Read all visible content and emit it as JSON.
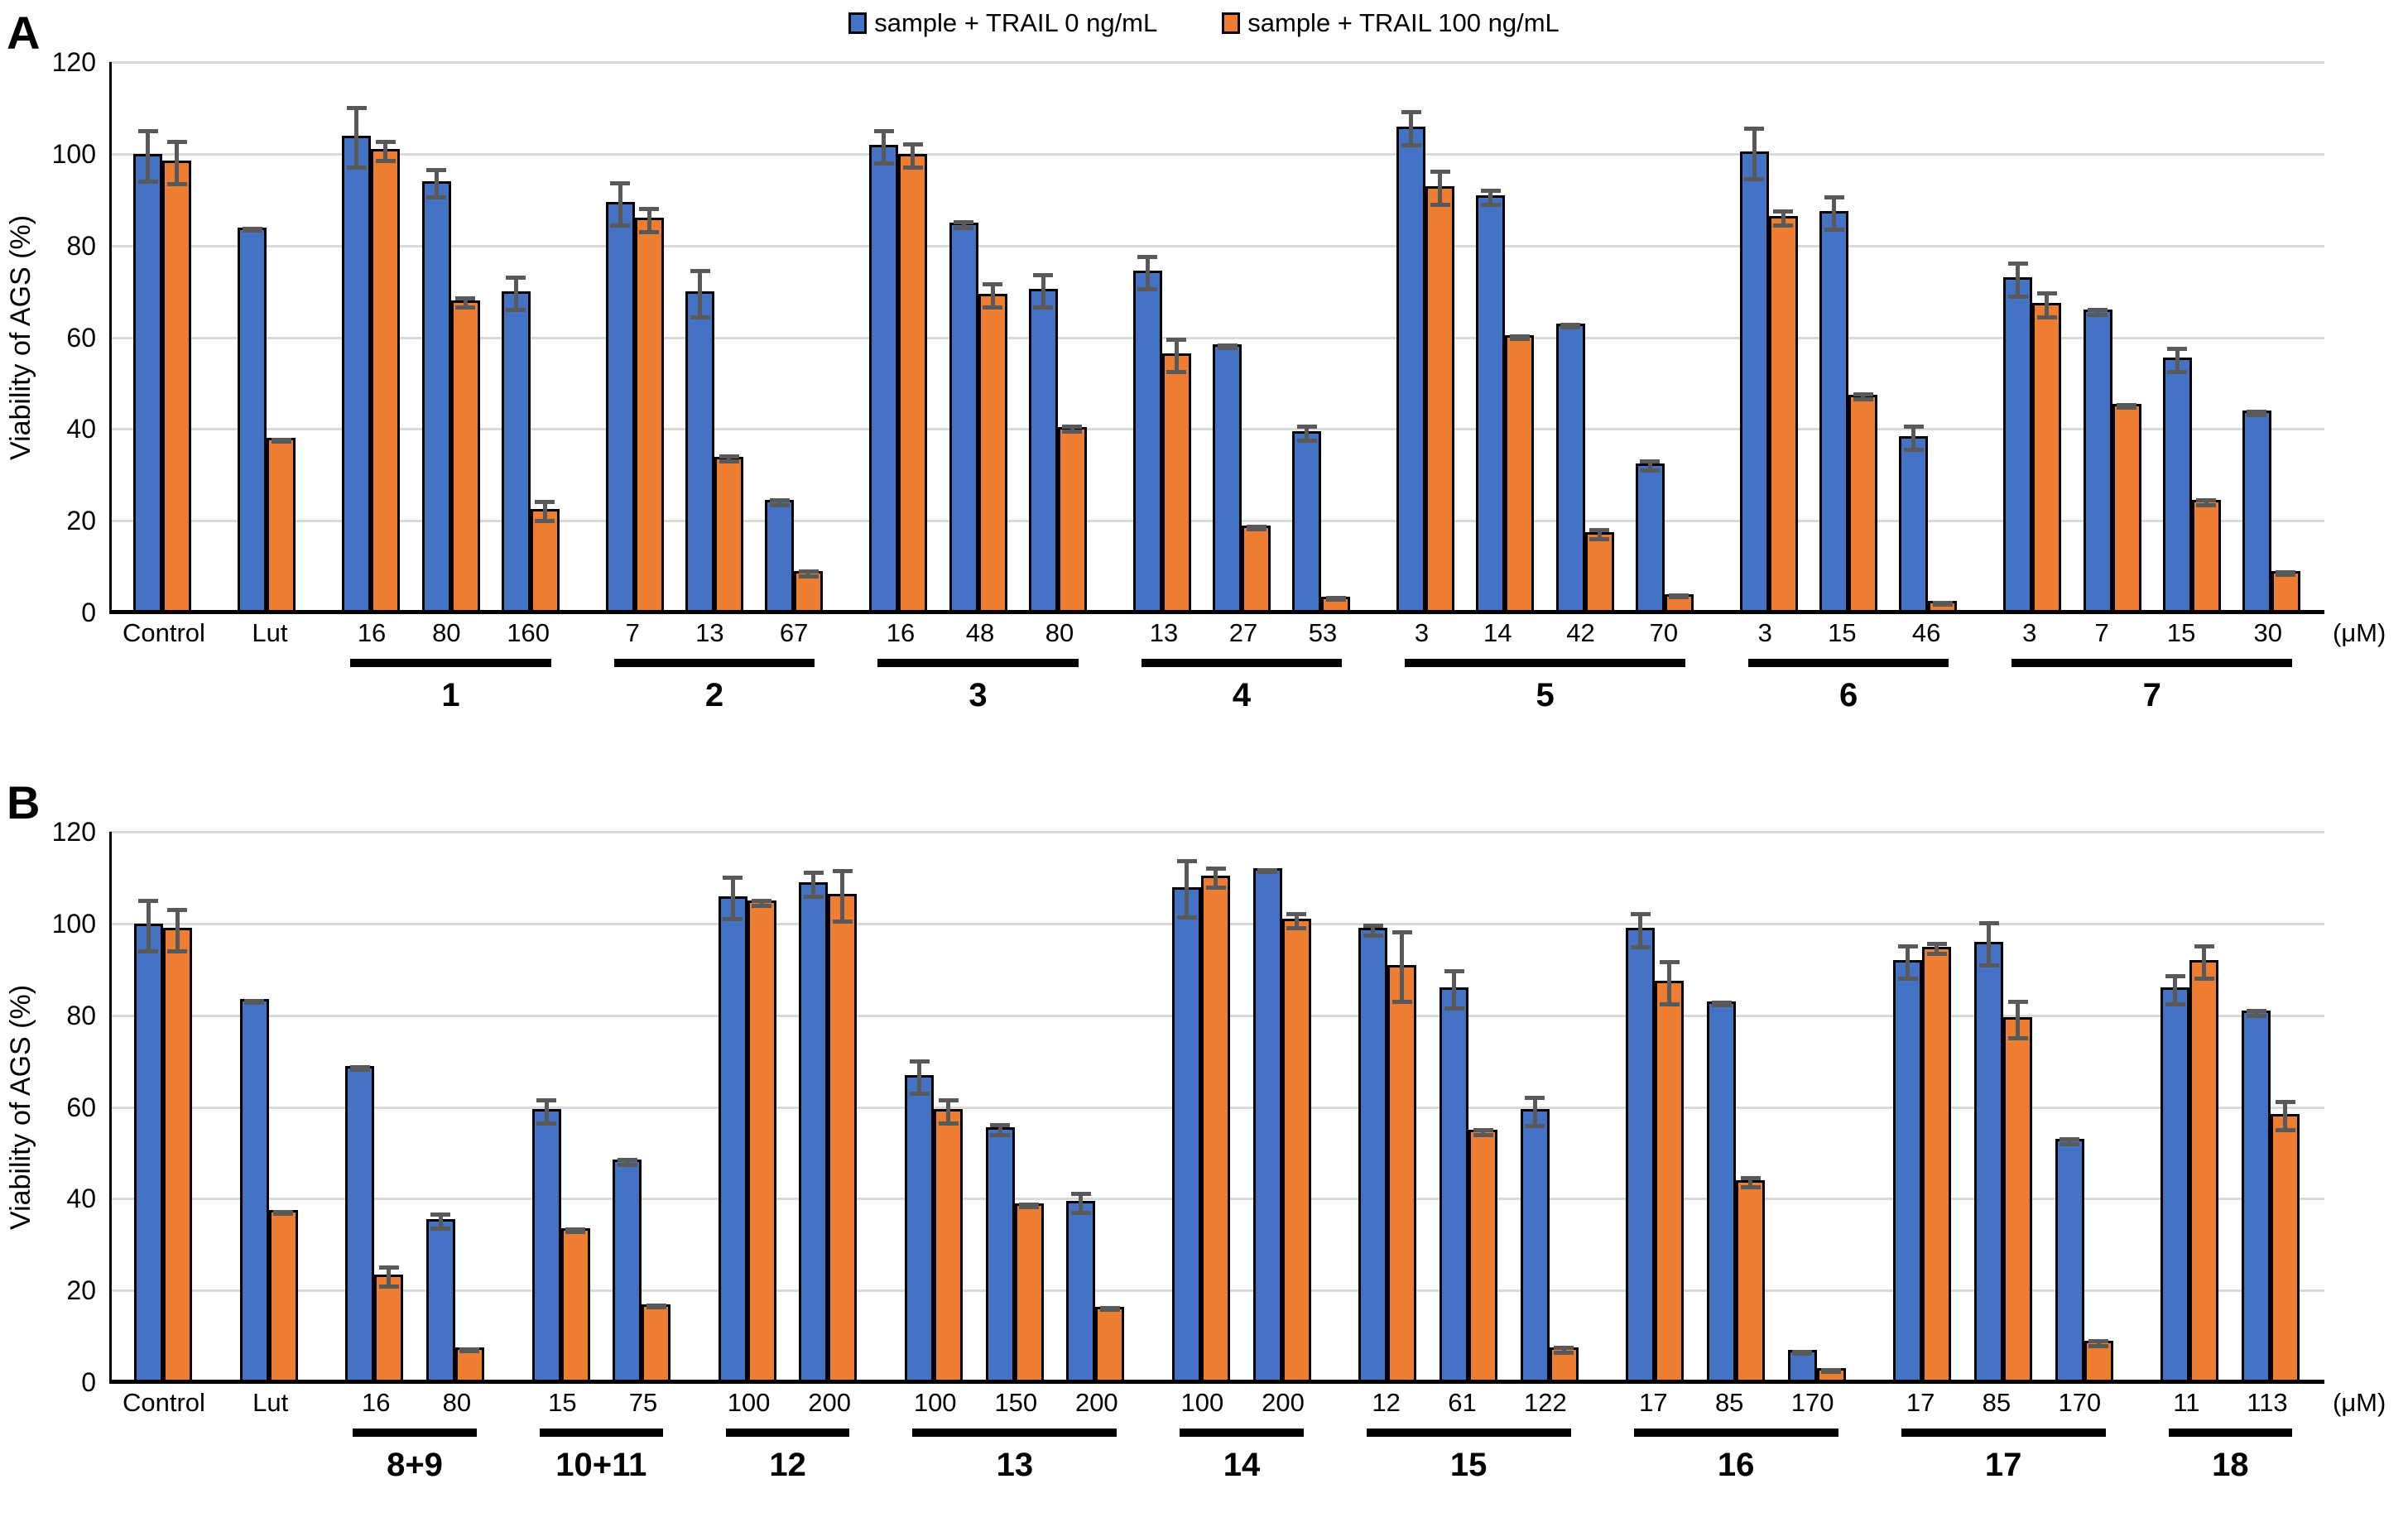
{
  "legend": {
    "series1": "sample + TRAIL 0 ng/mL",
    "series2": "sample + TRAIL 100 ng/mL"
  },
  "colors": {
    "series1": "#4472C4",
    "series2": "#ED7D31",
    "error": "#595959",
    "gridline": "#D9D9D9",
    "axis": "#000000"
  },
  "unit_label": "(μM)",
  "chart_data": [
    {
      "type": "bar",
      "panel": "A",
      "ylabel": "Viability of AGS (%)",
      "ylim": [
        0,
        120
      ],
      "yticks": [
        0,
        20,
        40,
        60,
        80,
        100,
        120
      ],
      "grid": true,
      "legend_position": "top-center",
      "series_names": [
        "sample + TRAIL 0 ng/mL",
        "sample + TRAIL 100 ng/mL"
      ],
      "groups": [
        {
          "name": "",
          "items": [
            {
              "x": "Control",
              "v0": 100,
              "e0": 6,
              "v100": 98.5,
              "e100": 5
            }
          ]
        },
        {
          "name": "",
          "items": [
            {
              "x": "Lut",
              "v0": 84,
              "e0": 0.6,
              "v100": 38,
              "e100": 0.6
            }
          ]
        },
        {
          "name": "1",
          "items": [
            {
              "x": "16",
              "v0": 104,
              "e0": 7,
              "v100": 101,
              "e100": 2.5
            },
            {
              "x": "80",
              "v0": 94,
              "e0": 3.5,
              "v100": 68,
              "e100": 1.5
            },
            {
              "x": "160",
              "v0": 70,
              "e0": 4,
              "v100": 22.5,
              "e100": 2.5
            }
          ]
        },
        {
          "name": "2",
          "items": [
            {
              "x": "7",
              "v0": 89.5,
              "e0": 5,
              "v100": 86,
              "e100": 3
            },
            {
              "x": "13",
              "v0": 70,
              "e0": 5.5,
              "v100": 34,
              "e100": 1
            },
            {
              "x": "67",
              "v0": 24.5,
              "e0": 1,
              "v100": 9,
              "e100": 1
            }
          ]
        },
        {
          "name": "3",
          "items": [
            {
              "x": "16",
              "v0": 102,
              "e0": 4,
              "v100": 100,
              "e100": 3
            },
            {
              "x": "48",
              "v0": 85,
              "e0": 1,
              "v100": 69.5,
              "e100": 3
            },
            {
              "x": "80",
              "v0": 70.5,
              "e0": 4,
              "v100": 40.5,
              "e100": 1
            }
          ]
        },
        {
          "name": "4",
          "items": [
            {
              "x": "13",
              "v0": 74.5,
              "e0": 4,
              "v100": 56.5,
              "e100": 4
            },
            {
              "x": "27",
              "v0": 58.5,
              "e0": 0.7,
              "v100": 19,
              "e100": 0.7
            },
            {
              "x": "53",
              "v0": 39.5,
              "e0": 2,
              "v100": 3.5,
              "e100": 0.7
            }
          ]
        },
        {
          "name": "5",
          "items": [
            {
              "x": "3",
              "v0": 106,
              "e0": 4,
              "v100": 93,
              "e100": 4
            },
            {
              "x": "14",
              "v0": 91,
              "e0": 2,
              "v100": 60.5,
              "e100": 0.7
            },
            {
              "x": "42",
              "v0": 63,
              "e0": 0.7,
              "v100": 17.5,
              "e100": 1.5
            },
            {
              "x": "70",
              "v0": 32.5,
              "e0": 1.5,
              "v100": 4,
              "e100": 0.5
            }
          ]
        },
        {
          "name": "6",
          "items": [
            {
              "x": "3",
              "v0": 100.5,
              "e0": 6,
              "v100": 86.5,
              "e100": 2
            },
            {
              "x": "15",
              "v0": 87.5,
              "e0": 4,
              "v100": 47.5,
              "e100": 1
            },
            {
              "x": "46",
              "v0": 38.5,
              "e0": 3,
              "v100": 2.5,
              "e100": 0.5
            }
          ]
        },
        {
          "name": "7",
          "items": [
            {
              "x": "3",
              "v0": 73,
              "e0": 4,
              "v100": 67.5,
              "e100": 3
            },
            {
              "x": "7",
              "v0": 66,
              "e0": 1,
              "v100": 45.5,
              "e100": 0.7
            },
            {
              "x": "15",
              "v0": 55.5,
              "e0": 3,
              "v100": 24.5,
              "e100": 1
            },
            {
              "x": "30",
              "v0": 44,
              "e0": 0.8,
              "v100": 9,
              "e100": 0.7
            }
          ]
        }
      ]
    },
    {
      "type": "bar",
      "panel": "B",
      "ylabel": "Viability of AGS (%)",
      "ylim": [
        0,
        120
      ],
      "yticks": [
        0,
        20,
        40,
        60,
        80,
        100,
        120
      ],
      "grid": true,
      "legend_position": "top-center",
      "series_names": [
        "sample + TRAIL 0 ng/mL",
        "sample + TRAIL 100 ng/mL"
      ],
      "groups": [
        {
          "name": "",
          "items": [
            {
              "x": "Control",
              "v0": 100,
              "e0": 6,
              "v100": 99,
              "e100": 5
            }
          ]
        },
        {
          "name": "",
          "items": [
            {
              "x": "Lut",
              "v0": 83.5,
              "e0": 0.6,
              "v100": 37.5,
              "e100": 0.6
            }
          ]
        },
        {
          "name": "8+9",
          "items": [
            {
              "x": "16",
              "v0": 69,
              "e0": 0.7,
              "v100": 23.5,
              "e100": 2.5
            },
            {
              "x": "80",
              "v0": 35.5,
              "e0": 2,
              "v100": 7.5,
              "e100": 0.7
            }
          ]
        },
        {
          "name": "10+11",
          "items": [
            {
              "x": "15",
              "v0": 59.5,
              "e0": 3,
              "v100": 33.5,
              "e100": 0.7
            },
            {
              "x": "75",
              "v0": 48.5,
              "e0": 1,
              "v100": 17,
              "e100": 0.5
            }
          ]
        },
        {
          "name": "12",
          "items": [
            {
              "x": "100",
              "v0": 106,
              "e0": 5,
              "v100": 105,
              "e100": 1
            },
            {
              "x": "200",
              "v0": 109,
              "e0": 3,
              "v100": 106.5,
              "e100": 6
            }
          ]
        },
        {
          "name": "13",
          "items": [
            {
              "x": "100",
              "v0": 67,
              "e0": 4,
              "v100": 59.5,
              "e100": 3
            },
            {
              "x": "150",
              "v0": 55.5,
              "e0": 1.5,
              "v100": 39,
              "e100": 0.7
            },
            {
              "x": "200",
              "v0": 39.5,
              "e0": 2.5,
              "v100": 16.5,
              "e100": 0.7
            }
          ]
        },
        {
          "name": "14",
          "items": [
            {
              "x": "100",
              "v0": 108,
              "e0": 6.5,
              "v100": 110.5,
              "e100": 2.5
            },
            {
              "x": "200",
              "v0": 112,
              "e0": 0.4,
              "v100": 101,
              "e100": 2
            }
          ]
        },
        {
          "name": "15",
          "items": [
            {
              "x": "12",
              "v0": 99,
              "e0": 1.5,
              "v100": 91,
              "e100": 8
            },
            {
              "x": "61",
              "v0": 86,
              "e0": 4.5,
              "v100": 55,
              "e100": 1
            },
            {
              "x": "122",
              "v0": 59.5,
              "e0": 3.5,
              "v100": 7.5,
              "e100": 1
            }
          ]
        },
        {
          "name": "16",
          "items": [
            {
              "x": "17",
              "v0": 99,
              "e0": 4,
              "v100": 87.5,
              "e100": 5
            },
            {
              "x": "85",
              "v0": 83,
              "e0": 0.8,
              "v100": 44,
              "e100": 1.5
            },
            {
              "x": "170",
              "v0": 7,
              "e0": 0.5,
              "v100": 3,
              "e100": 0.5
            }
          ]
        },
        {
          "name": "17",
          "items": [
            {
              "x": "17",
              "v0": 92,
              "e0": 4,
              "v100": 95,
              "e100": 1.5
            },
            {
              "x": "85",
              "v0": 96,
              "e0": 5,
              "v100": 79.5,
              "e100": 4.5
            },
            {
              "x": "170",
              "v0": 53,
              "e0": 1,
              "v100": 9,
              "e100": 1
            }
          ]
        },
        {
          "name": "18",
          "items": [
            {
              "x": "11",
              "v0": 86,
              "e0": 3.5,
              "v100": 92,
              "e100": 4
            },
            {
              "x": "113",
              "v0": 81,
              "e0": 1,
              "v100": 58.5,
              "e100": 3.5
            }
          ]
        }
      ]
    }
  ]
}
